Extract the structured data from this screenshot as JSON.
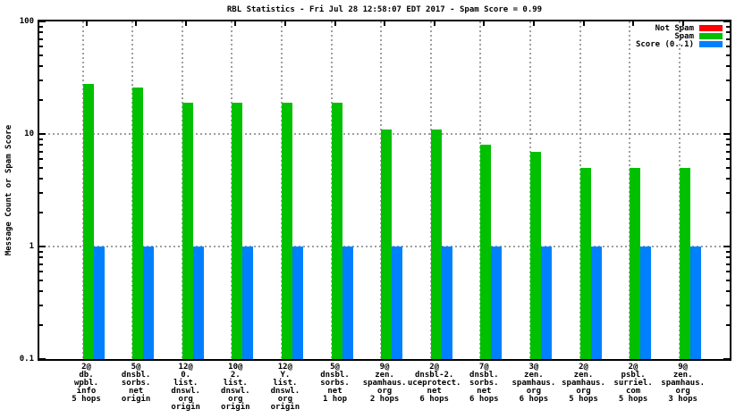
{
  "chart_data": {
    "type": "bar",
    "title": "RBL Statistics - Fri Jul 28 12:58:07 EDT 2017 - Spam Score = 0.99",
    "ylabel": "Message Count or Spam Score",
    "yscale": "log",
    "ylim": [
      0.1,
      100
    ],
    "ytick_labels": [
      "100",
      "10",
      "1",
      "0.1"
    ],
    "ytick_values": [
      100,
      10,
      1,
      0.1
    ],
    "hgrid_values": [
      10,
      1
    ],
    "grid": true,
    "legend_position": "top-right-inside",
    "categories": [
      [
        "2@",
        "db.",
        "wpbl.",
        "info",
        "5 hops"
      ],
      [
        "5@",
        "dnsbl.",
        "sorbs.",
        "net",
        "origin"
      ],
      [
        "12@",
        "0.",
        "list.",
        "dnswl.",
        "org",
        "origin"
      ],
      [
        "10@",
        "2.",
        "list.",
        "dnswl.",
        "org",
        "origin"
      ],
      [
        "12@",
        "Y.",
        "list.",
        "dnswl.",
        "org",
        "origin"
      ],
      [
        "5@",
        "dnsbl.",
        "sorbs.",
        "net",
        "1 hop"
      ],
      [
        "9@",
        "zen.",
        "spamhaus.",
        "org",
        "2 hops"
      ],
      [
        "2@",
        "dnsbl-2.",
        "uceprotect.",
        "net",
        "6 hops"
      ],
      [
        "7@",
        "dnsbl.",
        "sorbs.",
        "net",
        "6 hops"
      ],
      [
        "3@",
        "zen.",
        "spamhaus.",
        "org",
        "6 hops"
      ],
      [
        "2@",
        "zen.",
        "spamhaus.",
        "org",
        "5 hops"
      ],
      [
        "2@",
        "psbl.",
        "surriel.",
        "com",
        "5 hops"
      ],
      [
        "9@",
        "zen.",
        "spamhaus.",
        "org",
        "3 hops"
      ]
    ],
    "series": [
      {
        "name": "Not Spam",
        "color": "#ff0000",
        "values": [
          0,
          0,
          0,
          0,
          0,
          0,
          0,
          0,
          0,
          0,
          0,
          0,
          0
        ]
      },
      {
        "name": "Spam",
        "color": "#00c000",
        "values": [
          28,
          26,
          19,
          19,
          19,
          19,
          11,
          11,
          8,
          7,
          5,
          5,
          5
        ]
      },
      {
        "name": "Score (0..1)",
        "color": "#0080ff",
        "values": [
          1,
          1,
          1,
          1,
          1,
          1,
          1,
          1,
          1,
          1,
          1,
          1,
          1
        ]
      }
    ],
    "colors": {
      "not_spam": "#ff0000",
      "spam": "#00c000",
      "score": "#0080ff",
      "grid": "#a0a0a0",
      "axis": "#000000",
      "background": "#ffffff"
    }
  }
}
